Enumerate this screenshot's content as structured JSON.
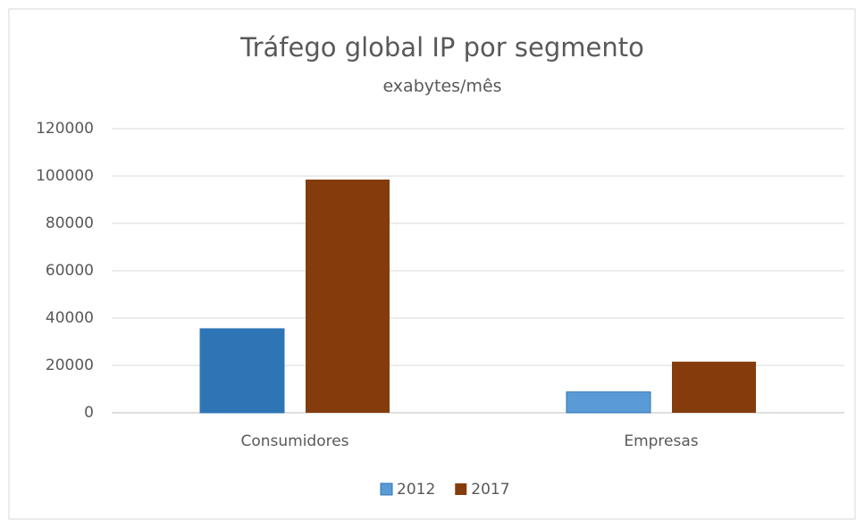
{
  "chart_data": {
    "type": "bar",
    "title": "Tráfego global IP por segmento",
    "subtitle": "exabytes/mês",
    "categories": [
      "Consumidores",
      "Empresas"
    ],
    "series": [
      {
        "name": "2012",
        "color": "#5b9bd5",
        "point_colors": [
          "#2e75b6",
          "#5b9bd5"
        ],
        "values": [
          35500,
          8800
        ]
      },
      {
        "name": "2017",
        "color": "#843c0c",
        "values": [
          98500,
          21600
        ]
      }
    ],
    "ylim": [
      0,
      120000
    ],
    "yticks": [
      0,
      20000,
      40000,
      60000,
      80000,
      100000,
      120000
    ],
    "grid": true,
    "legend": "bottom"
  }
}
